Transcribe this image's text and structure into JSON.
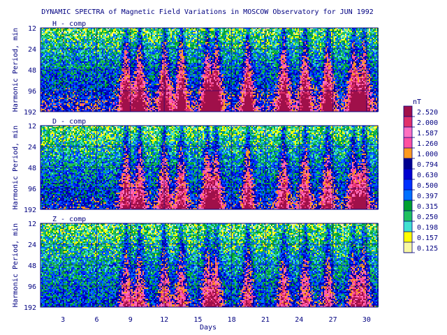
{
  "chart_data": {
    "type": "heatmap",
    "title": "DYNAMIC SPECTRA of Magnetic Field Variations in MOSCOW Observatory for JUN 1992",
    "xlabel": "Days",
    "ylabel": "Harmonic Period, min",
    "x_ticks": [
      "3",
      "6",
      "9",
      "12",
      "15",
      "18",
      "21",
      "24",
      "27",
      "30"
    ],
    "x_tick_values": [
      3,
      6,
      9,
      12,
      15,
      18,
      21,
      24,
      27,
      30
    ],
    "xlim": [
      1,
      31
    ],
    "y_ticks": [
      "12",
      "24",
      "48",
      "96",
      "192"
    ],
    "y_tick_values": [
      12,
      24,
      48,
      96,
      192
    ],
    "y_scale": "log2",
    "grid": true,
    "panels": [
      {
        "name": "H - comp",
        "activity": 1.0
      },
      {
        "name": "D - comp",
        "activity": 0.85
      },
      {
        "name": "Z - comp",
        "activity": 0.7
      }
    ],
    "storm_days": [
      8.6,
      9.8,
      12.0,
      13.5,
      15.8,
      16.6,
      19.4,
      22.6,
      24.5,
      26.5,
      28.8,
      29.7
    ],
    "colorbar": {
      "unit": "nT",
      "levels": [
        "2.520",
        "2.000",
        "1.587",
        "1.260",
        "1.000",
        "0.794",
        "0.630",
        "0.500",
        "0.397",
        "0.315",
        "0.250",
        "0.198",
        "0.157",
        "0.125"
      ],
      "colors": [
        "#a0104a",
        "#e0306a",
        "#ff70c0",
        "#ff50a0",
        "#ff9a20",
        "#000090",
        "#0000d0",
        "#0030ff",
        "#0070ff",
        "#00a030",
        "#20c060",
        "#40e0d0",
        "#ffff00",
        "#f8f8a0"
      ]
    }
  }
}
